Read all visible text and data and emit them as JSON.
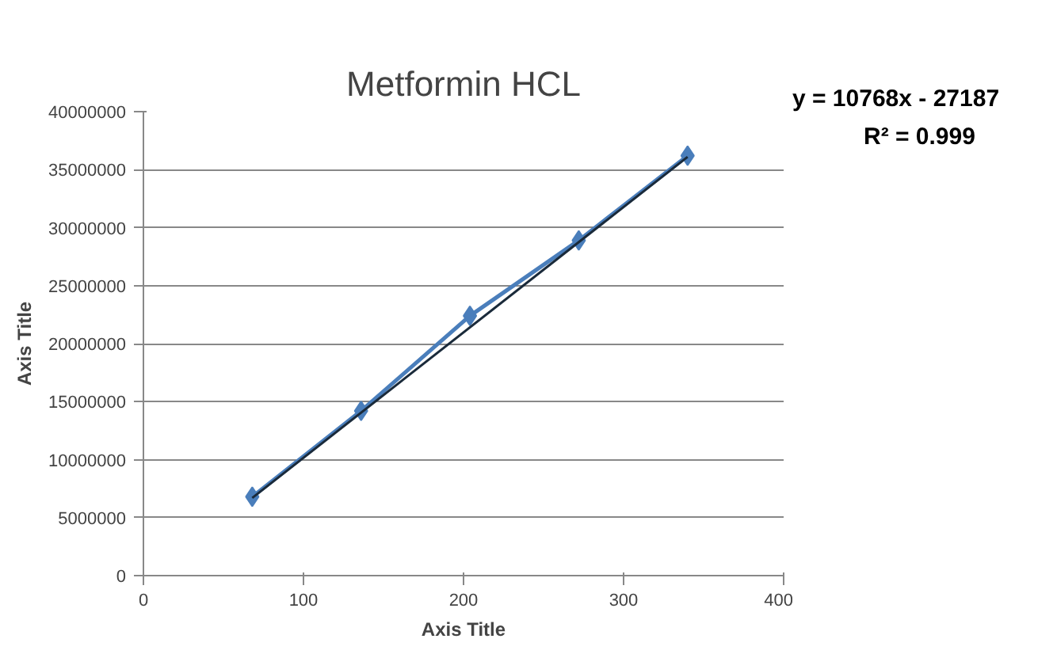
{
  "chart_data": {
    "type": "line",
    "title": "Metformin HCL",
    "xlabel": "Axis Title",
    "ylabel": "Axis Title",
    "annotations": [
      "y = 10768x - 27187",
      "R² = 0.999"
    ],
    "series": [
      {
        "marker": "diamond",
        "color": "#4a7ebb",
        "x": [
          68,
          136,
          204,
          272,
          340
        ],
        "values": [
          6800000,
          14200000,
          22400000,
          28900000,
          36200000
        ]
      },
      {
        "marker": "none",
        "color": "#1a2a3a",
        "x": [
          68,
          340
        ],
        "values": [
          6700000,
          36100000
        ]
      }
    ],
    "xlim": [
      0,
      400
    ],
    "xticks": [
      0,
      100,
      200,
      300,
      400
    ],
    "ylim": [
      0,
      40000000
    ],
    "yticks": [
      0,
      5000000,
      10000000,
      15000000,
      20000000,
      25000000,
      30000000,
      35000000,
      40000000
    ],
    "grid": "y"
  }
}
